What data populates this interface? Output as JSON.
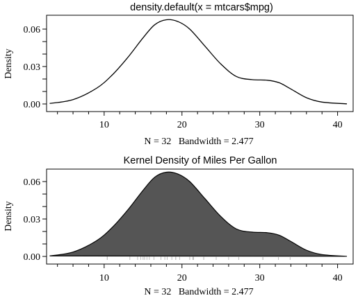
{
  "chart_data": [
    {
      "type": "line",
      "title": "density.default(x = mtcars$mpg)",
      "xlabel": "N = 32   Bandwidth = 2.477",
      "ylabel": "Density",
      "xlim": [
        2.6,
        42.0
      ],
      "ylim": [
        0.0,
        0.07
      ],
      "x_ticks": [
        10,
        20,
        30,
        40
      ],
      "y_ticks": [
        0.0,
        0.03,
        0.06
      ],
      "y_tick_labels": [
        "0.00",
        "0.03",
        "0.06"
      ],
      "grid": false,
      "filled": false,
      "series": [
        {
          "x": [
            3.0,
            6.0,
            9.0,
            11.0,
            13.0,
            15.0,
            16.5,
            18.0,
            19.5,
            21.0,
            23.0,
            25.0,
            27.0,
            29.0,
            31.0,
            32.5,
            34.0,
            36.0,
            38.0,
            41.2
          ],
          "values": [
            0.0004,
            0.0035,
            0.0125,
            0.023,
            0.037,
            0.053,
            0.0635,
            0.0675,
            0.066,
            0.06,
            0.046,
            0.032,
            0.022,
            0.0195,
            0.019,
            0.017,
            0.012,
            0.005,
            0.0015,
            0.0001
          ]
        }
      ]
    },
    {
      "type": "area",
      "title": "Kernel Density of Miles Per Gallon",
      "xlabel": "N = 32   Bandwidth = 2.477",
      "ylabel": "Density",
      "xlim": [
        2.6,
        42.0
      ],
      "ylim": [
        0.0,
        0.07
      ],
      "x_ticks": [
        10,
        20,
        30,
        40
      ],
      "y_ticks": [
        0.0,
        0.03,
        0.06
      ],
      "y_tick_labels": [
        "0.00",
        "0.03",
        "0.06"
      ],
      "grid": false,
      "filled": true,
      "fill_color": "#555555",
      "rug": [
        10.4,
        10.4,
        13.3,
        14.3,
        14.7,
        15.0,
        15.2,
        15.2,
        15.5,
        15.8,
        16.4,
        17.3,
        17.8,
        18.1,
        18.7,
        19.2,
        19.2,
        19.7,
        21.0,
        21.0,
        21.4,
        21.4,
        21.5,
        22.8,
        22.8,
        24.4,
        26.0,
        27.3,
        30.4,
        30.4,
        32.4,
        33.9
      ],
      "series": [
        {
          "x": [
            3.0,
            6.0,
            9.0,
            11.0,
            13.0,
            15.0,
            16.5,
            18.0,
            19.5,
            21.0,
            23.0,
            25.0,
            27.0,
            29.0,
            31.0,
            32.5,
            34.0,
            36.0,
            38.0,
            41.2
          ],
          "values": [
            0.0004,
            0.0035,
            0.0125,
            0.023,
            0.037,
            0.053,
            0.0635,
            0.0675,
            0.066,
            0.06,
            0.046,
            0.032,
            0.022,
            0.0195,
            0.019,
            0.017,
            0.012,
            0.005,
            0.0015,
            0.0001
          ]
        }
      ]
    }
  ]
}
